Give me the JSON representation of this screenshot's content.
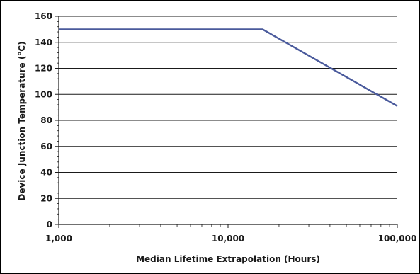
{
  "chart_data": {
    "type": "line",
    "title": "",
    "xlabel": "Median Lifetime Extrapolation (Hours)",
    "ylabel": "Device Junction Temperature (°C)",
    "xscale": "log",
    "xlim": [
      1000,
      100000
    ],
    "ylim": [
      0,
      160
    ],
    "grid": "horizontal",
    "legend": "none",
    "x_ticks": [
      1000,
      10000,
      100000
    ],
    "x_tick_labels": [
      "1,000",
      "10,000",
      "100,000"
    ],
    "y_ticks": [
      0,
      20,
      40,
      60,
      80,
      100,
      120,
      140,
      160
    ],
    "y_tick_labels": [
      "0",
      "20",
      "40",
      "60",
      "80",
      "100",
      "120",
      "140",
      "160"
    ],
    "series": [
      {
        "x": [
          1000,
          16000,
          100000
        ],
        "y": [
          150,
          150,
          91
        ],
        "color": "#4a5a9c"
      }
    ]
  }
}
